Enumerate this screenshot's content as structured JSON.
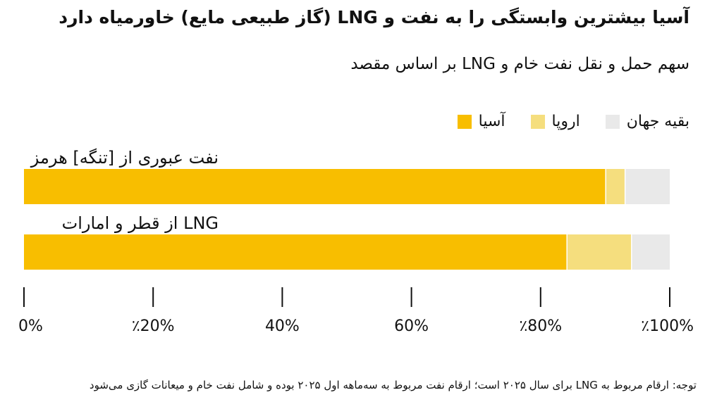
{
  "chart_data": {
    "type": "bar",
    "orientation": "horizontal",
    "stacked": true,
    "title": "آسیا بیشترین وابستگی را به نفت و LNG (گاز طبیعی مایع) خاورمیاه دارد",
    "subtitle": "سهم حمل و نقل نفت خام و LNG بر اساس مقصد",
    "categories": [
      "نفت عبوری از [تنگه] هرمز",
      "LNG از قطر و امارات"
    ],
    "series": [
      {
        "name": "آسیا",
        "values": [
          90,
          84
        ],
        "color": "#F8BE00"
      },
      {
        "name": "اروپا",
        "values": [
          3,
          10
        ],
        "color": "#F5DE7E"
      },
      {
        "name": "بقیه جهان",
        "values": [
          7,
          6
        ],
        "color": "#E9E9E9"
      }
    ],
    "xlim": [
      0,
      100
    ],
    "x_ticks": [
      0,
      20,
      40,
      60,
      80,
      100
    ],
    "x_tick_labels": [
      "0%",
      "٪20%",
      "40%",
      "60%",
      "٪80%",
      "٪100%"
    ],
    "legend_placement": "top-right",
    "grid": false,
    "note": "توجه: ارقام مربوط به LNG برای سال ۲۰۲۵ است؛ ارقام نفت مربوط به سه‌ماهه اول ۲۰۲۵ بوده و شامل نفت خام و میعانات گازی می‌شود"
  },
  "colors": {
    "asia": "#F8BE00",
    "europe": "#F5DE7E",
    "rest": "#E9E9E9",
    "axis": "#111111"
  }
}
